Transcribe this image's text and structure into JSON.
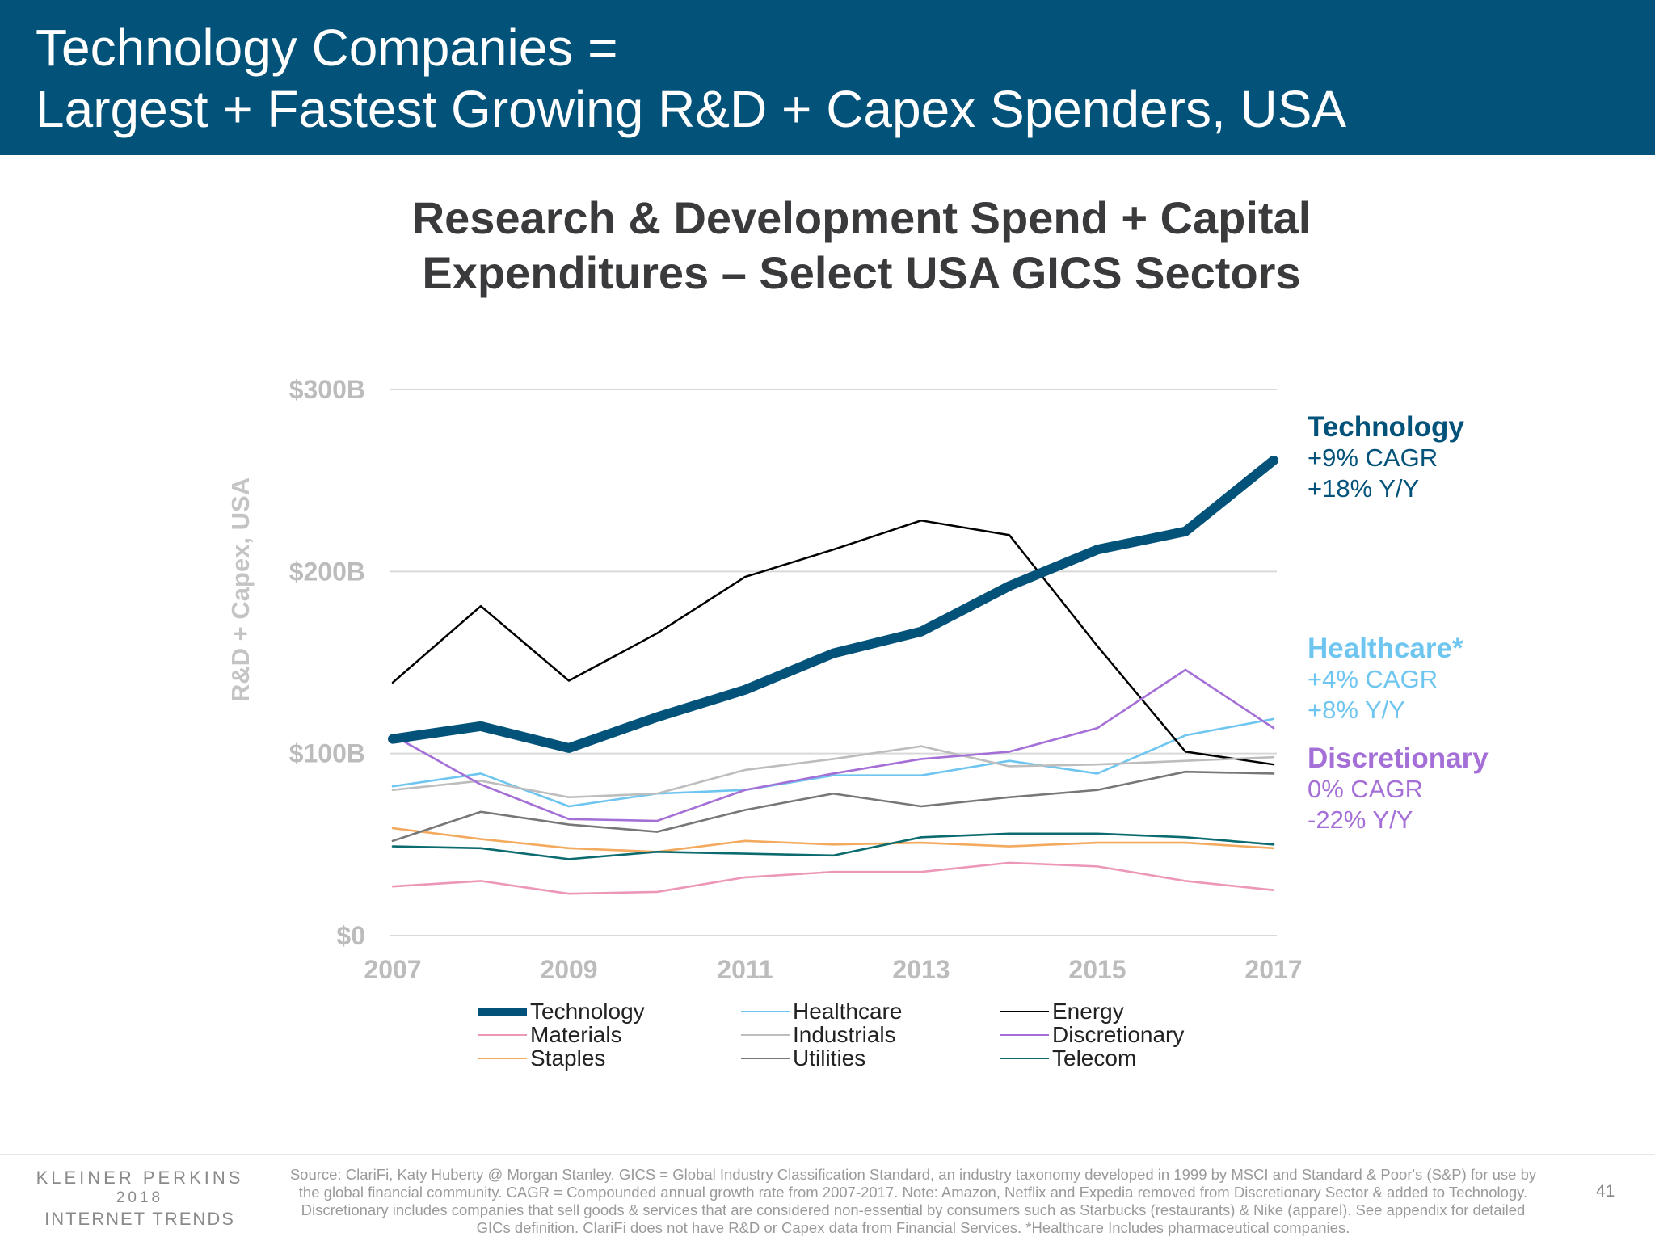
{
  "header": {
    "title_line1": "Technology Companies =",
    "title_line2": "Largest + Fastest Growing R&D + Capex Spenders, USA"
  },
  "chart_data": {
    "type": "line",
    "title": "Research & Development Spend + Capital Expenditures – Select USA GICS Sectors",
    "title_line1": "Research & Development Spend + Capital",
    "title_line2": "Expenditures – Select USA GICS Sectors",
    "ylabel": "R&D + Capex, USA",
    "xlabel": "",
    "x": [
      2007,
      2008,
      2009,
      2010,
      2011,
      2012,
      2013,
      2014,
      2015,
      2016,
      2017
    ],
    "x_tick_labels": [
      "2007",
      "2009",
      "2011",
      "2013",
      "2015",
      "2017"
    ],
    "y_tick_labels": [
      "$0",
      "$100B",
      "$200B",
      "$300B"
    ],
    "ylim": [
      0,
      300
    ],
    "y_unit": "$B",
    "grid": true,
    "legend_position": "bottom",
    "series": [
      {
        "name": "Technology",
        "color": "#03527a",
        "values": [
          108,
          115,
          103,
          120,
          135,
          155,
          167,
          192,
          212,
          222,
          261
        ]
      },
      {
        "name": "Healthcare",
        "color": "#6ec6f0",
        "values": [
          82,
          89,
          71,
          78,
          80,
          88,
          88,
          96,
          89,
          110,
          119
        ]
      },
      {
        "name": "Energy",
        "color": "#000000",
        "values": [
          139,
          181,
          140,
          166,
          197,
          212,
          228,
          220,
          159,
          101,
          94
        ]
      },
      {
        "name": "Materials",
        "color": "#ec97b8",
        "values": [
          27,
          30,
          23,
          24,
          32,
          35,
          35,
          40,
          38,
          30,
          25
        ]
      },
      {
        "name": "Industrials",
        "color": "#bdbdbd",
        "values": [
          80,
          85,
          76,
          78,
          91,
          97,
          104,
          93,
          94,
          96,
          98
        ]
      },
      {
        "name": "Discretionary",
        "color": "#a46fd6",
        "values": [
          110,
          83,
          64,
          63,
          80,
          89,
          97,
          101,
          114,
          146,
          114
        ]
      },
      {
        "name": "Staples",
        "color": "#f3aa5e",
        "values": [
          59,
          53,
          48,
          46,
          52,
          50,
          51,
          49,
          51,
          51,
          48
        ]
      },
      {
        "name": "Utilities",
        "color": "#777777",
        "values": [
          52,
          68,
          61,
          57,
          69,
          78,
          71,
          76,
          80,
          90,
          89
        ]
      },
      {
        "name": "Telecom",
        "color": "#0b6b6e",
        "values": [
          49,
          48,
          42,
          46,
          45,
          44,
          54,
          56,
          56,
          54,
          50
        ]
      }
    ],
    "annotations": [
      {
        "name": "Technology",
        "lines": [
          "+9% CAGR",
          "+18% Y/Y"
        ],
        "color": "#03527a"
      },
      {
        "name": "Healthcare*",
        "lines": [
          "+4% CAGR",
          "+8% Y/Y"
        ],
        "color": "#6ec6f0"
      },
      {
        "name": "Discretionary",
        "lines": [
          "0% CAGR",
          "-22% Y/Y"
        ],
        "color": "#a46fd6"
      }
    ]
  },
  "footer": {
    "brand_line1": "KLEINER PERKINS",
    "brand_line2": "2018",
    "brand_line3": "INTERNET TRENDS",
    "source": "Source: ClariFi, Katy Huberty @ Morgan Stanley. GICS = Global Industry Classification Standard, an industry taxonomy developed in 1999 by MSCI and Standard & Poor's (S&P) for use by the global financial community. CAGR = Compounded annual growth rate from 2007-2017.  Note: Amazon, Netflix and Expedia removed from Discretionary Sector & added to Technology. Discretionary includes companies that sell goods & services that are considered non-essential by consumers such as Starbucks (restaurants) & Nike (apparel). See appendix for detailed GICs definition. ClariFi does not have R&D or Capex data from Financial Services. *Healthcare Includes pharmaceutical companies.",
    "page_number": "41"
  }
}
